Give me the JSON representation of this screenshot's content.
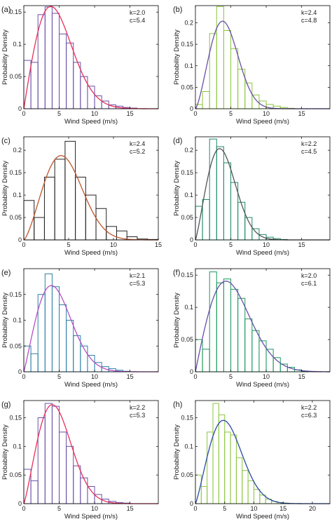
{
  "chart_data": [
    {
      "panel": "(a)",
      "type": "bar",
      "xlabel": "Wind Speed (m/s)",
      "ylabel": "Probability Density",
      "xlim": [
        0,
        19
      ],
      "ylim": [
        0,
        0.16
      ],
      "xticks": [
        "0",
        "5",
        "10",
        "15"
      ],
      "yticks": [
        "0",
        "0.05",
        "0.1",
        "0.15"
      ],
      "k_label": "k=2.0",
      "c_label": "c=5.4",
      "k": 2.0,
      "c": 5.4,
      "bin_width": 1,
      "bins": [
        0,
        1,
        2,
        3,
        4,
        5,
        6,
        7,
        8,
        9,
        10,
        11,
        12,
        13,
        14,
        15,
        16,
        17,
        18
      ],
      "values": [
        0.075,
        0.072,
        0.146,
        0.158,
        0.148,
        0.116,
        0.102,
        0.072,
        0.05,
        0.035,
        0.02,
        0.012,
        0.006,
        0.004,
        0.002,
        0.001,
        0,
        0,
        0
      ],
      "bar_color": "#6a4fa8",
      "curve_color": "#e8305a"
    },
    {
      "panel": "(b)",
      "type": "bar",
      "xlabel": "Wind Speed (m/s)",
      "ylabel": "Probability Density",
      "xlim": [
        0,
        19
      ],
      "ylim": [
        0,
        0.24
      ],
      "xticks": [
        "0",
        "5",
        "10",
        "15"
      ],
      "yticks": [
        "0",
        "0.05",
        "0.1",
        "0.15",
        "0.2"
      ],
      "k_label": "k=2.4",
      "c_label": "c=4.8",
      "k": 2.4,
      "c": 4.8,
      "bin_width": 1,
      "bins": [
        0,
        1,
        2,
        3,
        4,
        5,
        6,
        7,
        8,
        9,
        10,
        11,
        12,
        13,
        14,
        15,
        16,
        17,
        18
      ],
      "values": [
        0.01,
        0.04,
        0.175,
        0.238,
        0.182,
        0.14,
        0.092,
        0.06,
        0.032,
        0.018,
        0.01,
        0.006,
        0.003,
        0.001,
        0,
        0,
        0,
        0,
        0
      ],
      "bar_color": "#8cc63f",
      "curve_color": "#6a4fa8"
    },
    {
      "panel": "(c)",
      "type": "bar",
      "xlabel": "Wind Speed (m/s)",
      "ylabel": "Probability Density",
      "xlim": [
        0,
        15
      ],
      "ylim": [
        0,
        0.23
      ],
      "xticks": [
        "0",
        "5",
        "10",
        "15"
      ],
      "yticks": [
        "0",
        "0.05",
        "0.1",
        "0.15",
        "0.2"
      ],
      "k_label": "k=2.4",
      "c_label": "c=5.2",
      "k": 2.4,
      "c": 5.2,
      "bin_width": 1.15,
      "bins": [
        0,
        1.15,
        2.3,
        3.45,
        4.6,
        5.75,
        6.9,
        8.05,
        9.2,
        10.35,
        11.5,
        12.65,
        13.8
      ],
      "values": [
        0.088,
        0.05,
        0.14,
        0.18,
        0.22,
        0.14,
        0.1,
        0.07,
        0.03,
        0.02,
        0.007,
        0.002,
        0.001
      ],
      "bar_color": "#222222",
      "curve_color": "#c0542a"
    },
    {
      "panel": "(d)",
      "type": "bar",
      "xlabel": "Wind Speed (m/s)",
      "ylabel": "Probability Density",
      "xlim": [
        0,
        19
      ],
      "ylim": [
        0,
        0.23
      ],
      "xticks": [
        "0",
        "5",
        "10",
        "15"
      ],
      "yticks": [
        "0",
        "0.05",
        "0.1",
        "0.15",
        "0.2"
      ],
      "k_label": "k=2.2",
      "c_label": "c=4.5",
      "k": 2.2,
      "c": 4.5,
      "bin_width": 1,
      "bins": [
        0,
        1,
        2,
        3,
        4,
        5,
        6,
        7,
        8,
        9,
        10,
        11,
        12,
        13,
        14,
        15,
        16,
        17,
        18
      ],
      "values": [
        0.075,
        0.09,
        0.225,
        0.208,
        0.172,
        0.128,
        0.084,
        0.05,
        0.025,
        0.012,
        0.006,
        0.003,
        0.001,
        0,
        0,
        0,
        0,
        0,
        0
      ],
      "bar_color": "#1d8a6b",
      "curve_color": "#555555"
    },
    {
      "panel": "(e)",
      "type": "bar",
      "xlabel": "Wind Speed (m/s)",
      "ylabel": "Probability Density",
      "xlim": [
        0,
        19
      ],
      "ylim": [
        0,
        0.2
      ],
      "xticks": [
        "0",
        "5",
        "10",
        "15"
      ],
      "yticks": [
        "0",
        "0.05",
        "0.1",
        "0.15"
      ],
      "k_label": "k=2.1",
      "c_label": "c=5.3",
      "k": 2.1,
      "c": 5.3,
      "bin_width": 1,
      "bins": [
        0,
        1,
        2,
        3,
        4,
        5,
        6,
        7,
        8,
        9,
        10,
        11,
        12,
        13,
        14,
        15,
        16,
        17,
        18
      ],
      "values": [
        0.05,
        0.035,
        0.15,
        0.19,
        0.165,
        0.13,
        0.1,
        0.07,
        0.05,
        0.032,
        0.018,
        0.01,
        0.006,
        0.003,
        0.001,
        0,
        0,
        0,
        0
      ],
      "bar_color": "#2b7fa8",
      "curve_color": "#b84fc6"
    },
    {
      "panel": "(f)",
      "type": "bar",
      "xlabel": "Wind Speed (m/s)",
      "ylabel": "Probability Density",
      "xlim": [
        0,
        19
      ],
      "ylim": [
        0,
        0.16
      ],
      "xticks": [
        "0",
        "5",
        "10",
        "15"
      ],
      "yticks": [
        "0",
        "0.05",
        "0.1",
        "0.15"
      ],
      "k_label": "k=2.0",
      "c_label": "c=6.1",
      "k": 2.0,
      "c": 6.1,
      "bin_width": 1,
      "bins": [
        0,
        1,
        2,
        3,
        4,
        5,
        6,
        7,
        8,
        9,
        10,
        11,
        12,
        13,
        14,
        15,
        16,
        17,
        18
      ],
      "values": [
        0.05,
        0.035,
        0.155,
        0.138,
        0.144,
        0.128,
        0.114,
        0.082,
        0.064,
        0.048,
        0.035,
        0.022,
        0.012,
        0.007,
        0.003,
        0.001,
        0,
        0,
        0
      ],
      "bar_color": "#1a9a5b",
      "curve_color": "#6a4fa8"
    },
    {
      "panel": "(g)",
      "type": "bar",
      "xlabel": "Wind Speed (m/s)",
      "ylabel": "Probability Density",
      "xlim": [
        0,
        19
      ],
      "ylim": [
        0,
        0.18
      ],
      "xticks": [
        "0",
        "5",
        "10",
        "15"
      ],
      "yticks": [
        "0",
        "0.05",
        "0.1",
        "0.15"
      ],
      "k_label": "k=2.2",
      "c_label": "c=5.3",
      "k": 2.2,
      "c": 5.3,
      "bin_width": 1,
      "bins": [
        0,
        1,
        2,
        3,
        4,
        5,
        6,
        7,
        8,
        9,
        10,
        11,
        12,
        13,
        14,
        15,
        16,
        17,
        18
      ],
      "values": [
        0.06,
        0.04,
        0.15,
        0.175,
        0.17,
        0.125,
        0.1,
        0.066,
        0.045,
        0.03,
        0.016,
        0.008,
        0.004,
        0.002,
        0.001,
        0,
        0,
        0,
        0
      ],
      "bar_color": "#6a4fa8",
      "curve_color": "#e8305a"
    },
    {
      "panel": "(h)",
      "type": "bar",
      "xlabel": "Wind Speed (m/s)",
      "ylabel": "Probability Density",
      "xlim": [
        0,
        23
      ],
      "ylim": [
        0,
        0.18
      ],
      "xticks": [
        "0",
        "5",
        "10",
        "15",
        "20"
      ],
      "yticks": [
        "0",
        "0.05",
        "0.1",
        "0.15"
      ],
      "k_label": "k=2.2",
      "c_label": "c=6.3",
      "k": 2.2,
      "c": 6.3,
      "bin_width": 1,
      "bins": [
        0,
        1,
        2,
        3,
        4,
        5,
        6,
        7,
        8,
        9,
        10,
        11,
        12,
        13,
        14,
        15,
        16,
        17,
        18,
        19,
        20,
        21,
        22
      ],
      "values": [
        0.05,
        0.03,
        0.125,
        0.175,
        0.155,
        0.125,
        0.12,
        0.08,
        0.058,
        0.04,
        0.025,
        0.015,
        0.008,
        0.004,
        0.002,
        0.001,
        0,
        0,
        0,
        0,
        0,
        0,
        0
      ],
      "bar_color": "#8cc63f",
      "curve_color": "#2b4aa8"
    }
  ]
}
